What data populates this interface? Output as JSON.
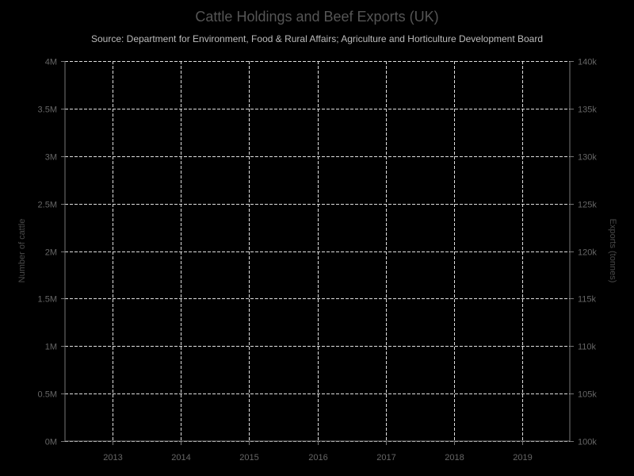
{
  "chart_data": {
    "type": "line",
    "title": "Cattle Holdings and Beef Exports (UK)",
    "subtitle": "Source: Department for Environment, Food & Rural Affairs; Agriculture and Horticulture Development Board",
    "x": [
      "2013",
      "2014",
      "2015",
      "2016",
      "2017",
      "2018",
      "2019"
    ],
    "xlim": [
      "2012.3",
      "2019.7"
    ],
    "y_left": {
      "label": "Number of cattle",
      "ylim": [
        0,
        4000000
      ],
      "ticks": [
        0,
        500000,
        1000000,
        1500000,
        2000000,
        2500000,
        3000000,
        3500000,
        4000000
      ],
      "tick_labels": [
        "0M",
        "0.5M",
        "1M",
        "1.5M",
        "2M",
        "2.5M",
        "3M",
        "3.5M",
        "4M"
      ]
    },
    "y_right": {
      "label": "Exports (tonnes)",
      "ylim": [
        100000,
        140000
      ],
      "ticks": [
        100000,
        105000,
        110000,
        115000,
        120000,
        125000,
        130000,
        135000,
        140000
      ],
      "tick_labels": [
        "100k",
        "105k",
        "110k",
        "115k",
        "120k",
        "125k",
        "130k",
        "135k",
        "140k"
      ]
    },
    "series": [],
    "grid": true,
    "colors": {
      "background": "#000000",
      "grid": "#dddddd",
      "axis": "#777777",
      "title": "#555555",
      "subtitle": "#bbbbbb",
      "tick_label": "#666666",
      "axis_label": "#4a4a4a"
    }
  }
}
